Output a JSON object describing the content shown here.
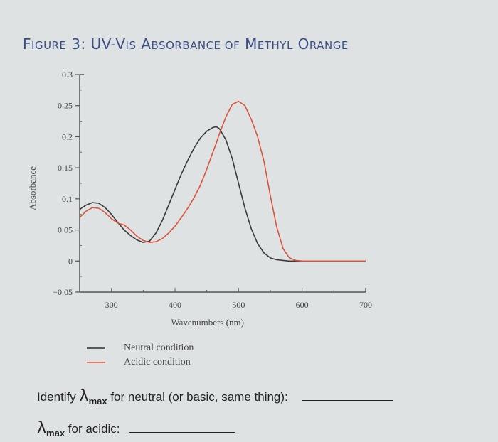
{
  "title": {
    "prefix": "F",
    "rest1": "IGURE 3: UV-V",
    "rest2": "IS ",
    "full": "FIGURE 3: UV-VIS ABSORBANCE OF METHYL ORANGE"
  },
  "chart_data": {
    "type": "line",
    "title": "Figure 3: UV-Vis Absorbance of Methyl Orange",
    "xlabel": "Wavenumbers (nm)",
    "ylabel": "Absorbance",
    "xlim": [
      250,
      700
    ],
    "ylim": [
      -0.05,
      0.3
    ],
    "xticks": [
      300,
      400,
      500,
      600,
      700
    ],
    "yticks": [
      -0.05,
      0,
      0.05,
      0.1,
      0.15,
      0.2,
      0.25,
      0.3
    ],
    "ytick_labels": [
      "−0.05",
      "0",
      "0.05",
      "0.1",
      "0.15",
      "0.2",
      "0.25",
      "0.3"
    ],
    "grid": false,
    "legend_position": "below",
    "x": [
      250,
      260,
      270,
      280,
      290,
      300,
      310,
      320,
      330,
      340,
      350,
      360,
      370,
      380,
      390,
      400,
      410,
      420,
      430,
      440,
      450,
      460,
      465,
      470,
      480,
      490,
      500,
      510,
      520,
      530,
      540,
      550,
      560,
      570,
      580,
      590,
      600,
      650,
      700
    ],
    "series": [
      {
        "name": "Neutral condition",
        "color": "#3a3a3a",
        "values": [
          0.083,
          0.09,
          0.094,
          0.093,
          0.086,
          0.075,
          0.062,
          0.05,
          0.041,
          0.034,
          0.03,
          0.032,
          0.045,
          0.065,
          0.09,
          0.115,
          0.14,
          0.162,
          0.182,
          0.198,
          0.209,
          0.215,
          0.216,
          0.213,
          0.195,
          0.165,
          0.125,
          0.085,
          0.052,
          0.028,
          0.013,
          0.005,
          0.002,
          0.001,
          0.0,
          0.0,
          0.0,
          0.0,
          0.0
        ]
      },
      {
        "name": "Acidic condition",
        "color": "#d9553a",
        "values": [
          0.07,
          0.08,
          0.086,
          0.085,
          0.078,
          0.068,
          0.061,
          0.058,
          0.05,
          0.04,
          0.033,
          0.03,
          0.031,
          0.036,
          0.045,
          0.056,
          0.07,
          0.085,
          0.102,
          0.122,
          0.148,
          0.176,
          0.19,
          0.205,
          0.232,
          0.252,
          0.257,
          0.25,
          0.228,
          0.2,
          0.16,
          0.105,
          0.055,
          0.02,
          0.005,
          0.001,
          0.0,
          0.0,
          0.0
        ]
      }
    ]
  },
  "legend": [
    {
      "label": "Neutral condition",
      "color": "#5a5a5a"
    },
    {
      "label": "Acidic condition",
      "color": "#e07a62"
    }
  ],
  "questions": [
    {
      "pre": "Identify ",
      "lambda": "λ",
      "sub": "max",
      "post": " for neutral (or basic, same thing):"
    },
    {
      "pre": "",
      "lambda": "λ",
      "sub": "max",
      "post": " for acidic:"
    }
  ]
}
